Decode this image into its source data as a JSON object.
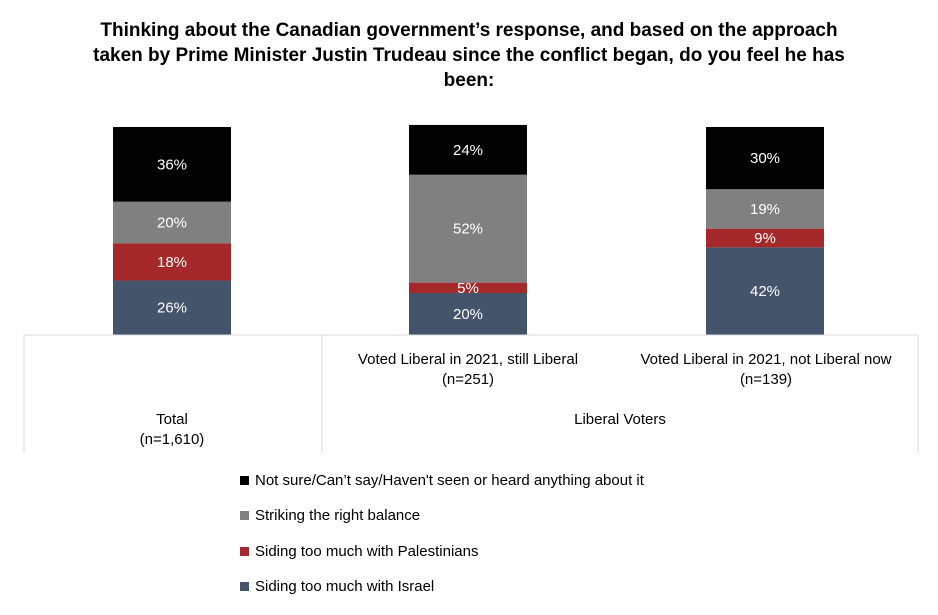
{
  "chart_data": {
    "type": "bar",
    "stacked": true,
    "title": "Thinking about the Canadian government’s response, and based on the approach taken by Prime Minister Justin Trudeau since the conflict began, do you feel he has been:",
    "categories": [
      {
        "label": "Total",
        "n": "(n=1,610)",
        "group": ""
      },
      {
        "label": "Voted Liberal in 2021, still Liberal",
        "n": "(n=251)",
        "group": "Liberal Voters"
      },
      {
        "label": "Voted Liberal in 2021, not Liberal now",
        "n": "(n=139)",
        "group": "Liberal Voters"
      }
    ],
    "group_labels": {
      "liberal": "Liberal Voters"
    },
    "ylim": [
      0,
      100
    ],
    "series": [
      {
        "name": "Siding too much with Israel",
        "color": "#44546a",
        "values": [
          26,
          20,
          42
        ],
        "labels": [
          "26%",
          "20%",
          "42%"
        ]
      },
      {
        "name": "Siding too much with Palestinians",
        "color": "#a5282b",
        "values": [
          18,
          5,
          9
        ],
        "labels": [
          "18%",
          "5%",
          "9%"
        ]
      },
      {
        "name": "Striking the right balance",
        "color": "#808080",
        "values": [
          20,
          52,
          19
        ],
        "labels": [
          "20%",
          "52%",
          "19%"
        ]
      },
      {
        "name": "Not sure/Can’t say/Haven't seen or heard anything about it",
        "color": "#000000",
        "values": [
          36,
          24,
          30
        ],
        "labels": [
          "36%",
          "24%",
          "30%"
        ]
      }
    ],
    "legend": [
      {
        "name": "Not sure/Can’t say/Haven't seen or heard anything about it",
        "color": "#000000"
      },
      {
        "name": "Striking the right balance",
        "color": "#808080"
      },
      {
        "name": "Siding too much with Palestinians",
        "color": "#a5282b"
      },
      {
        "name": "Siding too much with Israel",
        "color": "#44546a"
      }
    ],
    "grid": false
  }
}
